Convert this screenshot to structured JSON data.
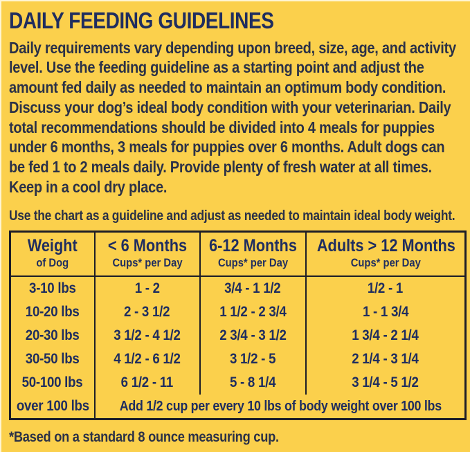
{
  "colors": {
    "background": "#fbd04c",
    "navy": "#1f2d5f",
    "ink": "#2b3147",
    "border": "#1d1d27"
  },
  "header": {
    "title": "DAILY FEEDING GUIDELINES"
  },
  "intro": "Daily requirements vary depending upon breed, size, age, and activity level. Use the feeding guideline as a starting point and adjust the amount fed daily as needed to maintain an optimum body condition. Discuss your dog’s ideal body condition with your veterinarian. Daily total recommendations should be divided into 4 meals for puppies under 6 months, 3 meals for puppies over 6 months. Adult dogs can be fed 1 to 2 meals daily. Provide plenty of fresh water at all times. Keep in a cool dry place.",
  "chart_note": "Use the chart as a guideline and adjust as needed to maintain ideal body weight.",
  "table": {
    "header": [
      {
        "title": "Weight",
        "subtitle": "of Dog"
      },
      {
        "title": "< 6 Months",
        "subtitle": "Cups* per Day"
      },
      {
        "title": "6-12 Months",
        "subtitle": "Cups* per Day"
      },
      {
        "title": "Adults > 12 Months",
        "subtitle": "Cups* per Day"
      }
    ],
    "rows": [
      {
        "weight": "3-10 lbs",
        "under6": "1 - 2",
        "m6to12": "3/4 - 1 1/2",
        "adults": "1/2 - 1"
      },
      {
        "weight": "10-20 lbs",
        "under6": "2 - 3 1/2",
        "m6to12": "1 1/2 - 2 3/4",
        "adults": "1 - 1 3/4"
      },
      {
        "weight": "20-30 lbs",
        "under6": "3 1/2 - 4 1/2",
        "m6to12": "2 3/4 - 3 1/2",
        "adults": "1 3/4 - 2 1/4"
      },
      {
        "weight": "30-50 lbs",
        "under6": "4 1/2 - 6 1/2",
        "m6to12": "3 1/2 - 5",
        "adults": "2 1/4 - 3 1/4"
      },
      {
        "weight": "50-100 lbs",
        "under6": "6 1/2 - 11",
        "m6to12": "5 - 8 1/4",
        "adults": "3 1/4 - 5 1/2"
      }
    ],
    "over100": {
      "weight": "over 100 lbs",
      "note": "Add 1/2 cup per every 10 lbs of body weight over 100 lbs"
    }
  },
  "footnote": "*Based on a standard 8 ounce measuring cup."
}
